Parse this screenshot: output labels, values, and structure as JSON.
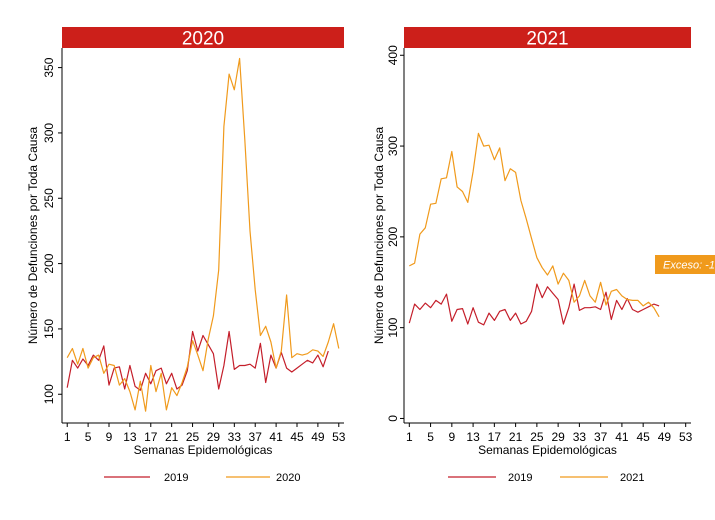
{
  "chart_data": [
    {
      "type": "line",
      "panel_title": "2020",
      "header_color": "#cc1f1a",
      "xlabel": "Semanas Epidemológicas",
      "ylabel": "Número de Defunciones por Toda Causa",
      "xlim": [
        0,
        54
      ],
      "ylim": [
        78,
        365
      ],
      "xticks": [
        1,
        5,
        9,
        13,
        17,
        21,
        25,
        29,
        33,
        37,
        41,
        45,
        49,
        53
      ],
      "yticks": [
        100,
        150,
        200,
        250,
        300,
        350
      ],
      "grid": false,
      "legend_position": "bottom",
      "series": [
        {
          "name": "2019",
          "color": "#c41e2a",
          "x": [
            1,
            2,
            3,
            4,
            5,
            6,
            7,
            8,
            9,
            10,
            11,
            12,
            13,
            14,
            15,
            16,
            17,
            18,
            19,
            20,
            21,
            22,
            23,
            24,
            25,
            26,
            27,
            28,
            29,
            30,
            31,
            32,
            33,
            34,
            35,
            36,
            37,
            38,
            39,
            40,
            41,
            42,
            43,
            44,
            45,
            46,
            47,
            48,
            49,
            50,
            51
          ],
          "values": [
            105,
            126,
            120,
            127,
            122,
            130,
            126,
            137,
            107,
            120,
            121,
            104,
            122,
            106,
            103,
            116,
            108,
            118,
            120,
            108,
            116,
            104,
            107,
            118,
            148,
            133,
            145,
            138,
            131,
            104,
            122,
            148,
            119,
            122,
            122,
            123,
            120,
            139,
            109,
            130,
            120,
            132,
            120,
            117,
            120,
            123,
            126,
            124,
            130,
            121,
            133
          ]
        },
        {
          "name": "2020",
          "color": "#f09a1c",
          "x": [
            1,
            2,
            3,
            4,
            5,
            6,
            7,
            8,
            9,
            10,
            11,
            12,
            13,
            14,
            15,
            16,
            17,
            18,
            19,
            20,
            21,
            22,
            23,
            24,
            25,
            26,
            27,
            28,
            29,
            30,
            31,
            32,
            33,
            34,
            35,
            36,
            37,
            38,
            39,
            40,
            41,
            42,
            43,
            44,
            45,
            46,
            47,
            48,
            49,
            50,
            51,
            52,
            53
          ],
          "values": [
            128,
            135,
            123,
            135,
            120,
            128,
            130,
            116,
            123,
            122,
            107,
            112,
            102,
            88,
            110,
            87,
            122,
            102,
            116,
            88,
            105,
            99,
            109,
            121,
            141,
            130,
            118,
            142,
            160,
            195,
            305,
            345,
            333,
            357,
            295,
            225,
            180,
            145,
            152,
            140,
            120,
            133,
            176,
            128,
            131,
            130,
            131,
            134,
            133,
            129,
            140,
            154,
            135
          ]
        }
      ]
    },
    {
      "type": "line",
      "panel_title": "2021",
      "header_color": "#cc1f1a",
      "xlabel": "Semanas Epidemológicas",
      "ylabel": "Número de Defunciones por Toda Causa",
      "xlim": [
        0,
        54
      ],
      "ylim": [
        -5,
        408
      ],
      "xticks": [
        1,
        5,
        9,
        13,
        17,
        21,
        25,
        29,
        33,
        37,
        41,
        45,
        49,
        53
      ],
      "yticks": [
        0,
        100,
        200,
        300,
        400
      ],
      "grid": false,
      "legend_position": "bottom",
      "annotation": {
        "text": "Exceso: -1",
        "color": "#f09a1c"
      },
      "series": [
        {
          "name": "2019",
          "color": "#c41e2a",
          "x": [
            1,
            2,
            3,
            4,
            5,
            6,
            7,
            8,
            9,
            10,
            11,
            12,
            13,
            14,
            15,
            16,
            17,
            18,
            19,
            20,
            21,
            22,
            23,
            24,
            25,
            26,
            27,
            28,
            29,
            30,
            31,
            32,
            33,
            34,
            35,
            36,
            37,
            38,
            39,
            40,
            41,
            42,
            43,
            44,
            45,
            46,
            47,
            48
          ],
          "values": [
            105,
            126,
            120,
            127,
            122,
            130,
            126,
            137,
            107,
            120,
            121,
            104,
            122,
            106,
            103,
            116,
            108,
            118,
            120,
            108,
            116,
            104,
            107,
            118,
            148,
            133,
            145,
            138,
            131,
            104,
            122,
            148,
            119,
            122,
            122,
            123,
            120,
            139,
            109,
            130,
            120,
            132,
            120,
            117,
            120,
            123,
            126,
            124
          ]
        },
        {
          "name": "2021",
          "color": "#f09a1c",
          "x": [
            1,
            2,
            3,
            4,
            5,
            6,
            7,
            8,
            9,
            10,
            11,
            12,
            13,
            14,
            15,
            16,
            17,
            18,
            19,
            20,
            21,
            22,
            23,
            24,
            25,
            26,
            27,
            28,
            29,
            30,
            31,
            32,
            33,
            34,
            35,
            36,
            37,
            38,
            39,
            40,
            41,
            42,
            43,
            44,
            45,
            46,
            47,
            48
          ],
          "values": [
            168,
            171,
            203,
            210,
            236,
            237,
            264,
            265,
            294,
            255,
            250,
            238,
            272,
            314,
            300,
            301,
            285,
            298,
            262,
            275,
            271,
            240,
            220,
            198,
            177,
            166,
            158,
            168,
            148,
            160,
            152,
            128,
            135,
            152,
            135,
            128,
            150,
            125,
            140,
            142,
            135,
            131,
            130,
            130,
            124,
            128,
            122,
            112
          ]
        }
      ]
    }
  ]
}
